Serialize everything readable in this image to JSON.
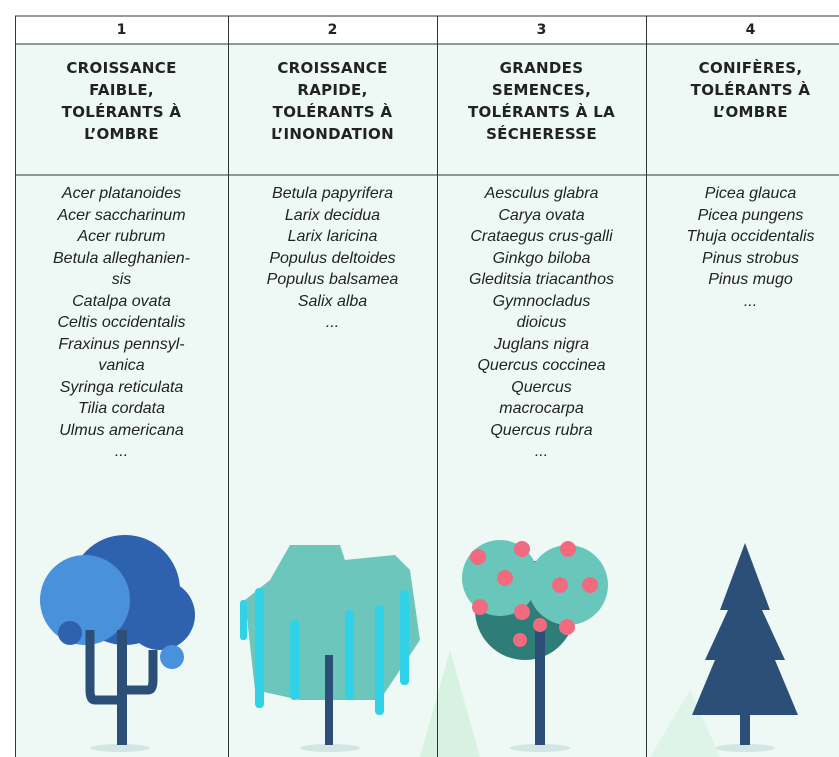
{
  "columns": [
    {
      "number": "1",
      "title_lines": [
        "CROISSANCE",
        "FAIBLE,",
        "TOLÉRANTS À",
        "L’OMBRE"
      ],
      "species": [
        "Acer platanoides",
        "Acer saccharinum",
        "Acer rubrum",
        "Betula alleghanien-",
        "sis",
        "Catalpa ovata",
        "Celtis occidentalis",
        "Fraxinus pennsyl-",
        "vanica",
        "Syringa reticulata",
        "Tilia cordata",
        "Ulmus americana",
        "..."
      ]
    },
    {
      "number": "2",
      "title_lines": [
        "CROISSANCE",
        "RAPIDE,",
        "TOLÉRANTS À",
        "L’INONDATION"
      ],
      "species": [
        "Betula papyrifera",
        "Larix decidua",
        "Larix laricina",
        "Populus deltoides",
        "Populus balsamea",
        "Salix alba",
        "..."
      ]
    },
    {
      "number": "3",
      "title_lines": [
        "GRANDES",
        "SEMENCES,",
        "TOLÉRANTS À LA",
        "SÉCHERESSE"
      ],
      "species": [
        "Aesculus glabra",
        "Carya ovata",
        "Crataegus crus-galli",
        "Ginkgo biloba",
        "Gleditsia triacanthos",
        "Gymnocladus",
        "dioicus",
        "Juglans nigra",
        "Quercus coccinea",
        "Quercus",
        "macrocarpa",
        "Quercus rubra",
        "..."
      ]
    },
    {
      "number": "4",
      "title_lines": [
        "CONIFÈRES,",
        "TOLÉRANTS À",
        "L’OMBRE"
      ],
      "species": [
        "Picea glauca",
        "Picea pungens",
        "Thuja occidentalis",
        "Pinus strobus",
        "Pinus mugo",
        "..."
      ]
    }
  ]
}
